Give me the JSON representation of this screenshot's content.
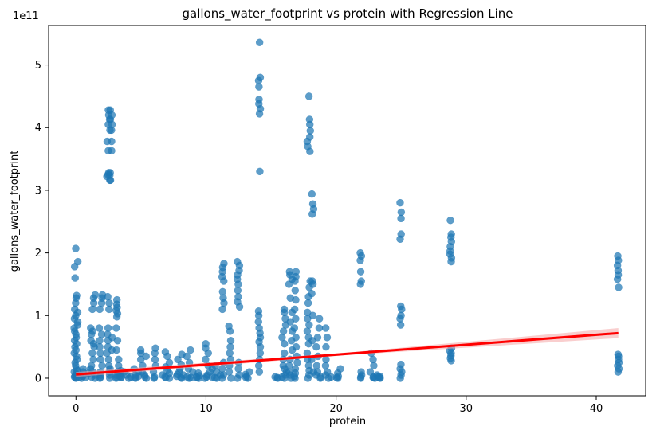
{
  "chart_data": {
    "type": "scatter",
    "title": "gallons_water_footprint vs protein with Regression Line",
    "xlabel": "protein",
    "ylabel": "gallons_water_footprint",
    "y_offset_text": "1e11",
    "xlim": [
      -2.1,
      43.8
    ],
    "ylim": [
      -28000000000.0,
      563000000000.0
    ],
    "xticks": [
      0,
      10,
      20,
      30,
      40
    ],
    "yticks": [
      0,
      100000000000.0,
      200000000000.0,
      300000000000.0,
      400000000000.0,
      500000000000.0
    ],
    "xtick_labels": [
      "0",
      "10",
      "20",
      "30",
      "40"
    ],
    "ytick_labels": [
      "0",
      "1",
      "2",
      "3",
      "4",
      "5"
    ],
    "colors": {
      "points": "#1f77b4",
      "regression": "#ff0000",
      "ci_band": "#f4a6a6"
    },
    "regression": {
      "x": [
        0,
        41.7
      ],
      "y": [
        6000000000.0,
        72000000000.0
      ],
      "ci_halfwidth_at_x": [
        [
          0,
          4000000000.0
        ],
        [
          21,
          2000000000.0
        ],
        [
          41.7,
          8000000000.0
        ]
      ]
    },
    "clusters": [
      {
        "x": 0.0,
        "jitter": 0.15,
        "ys": [
          0,
          1000000000.0,
          2000000000.0,
          3000000000.0,
          5000000000.0,
          7000000000.0,
          10000000000.0,
          12000000000.0,
          15000000000.0,
          20000000000.0,
          25000000000.0,
          30000000000.0,
          35000000000.0,
          40000000000.0,
          45000000000.0,
          50000000000.0,
          55000000000.0,
          60000000000.0,
          65000000000.0,
          70000000000.0,
          75000000000.0,
          80000000000.0,
          85000000000.0,
          90000000000.0,
          95000000000.0,
          100000000000.0,
          105000000000.0,
          110000000000.0,
          120000000000.0,
          128000000000.0,
          132000000000.0,
          160000000000.0,
          178000000000.0,
          186000000000.0,
          207000000000.0
        ]
      },
      {
        "x": 0.7,
        "jitter": 0.5,
        "ys": [
          0,
          1000000000.0,
          3000000000.0,
          5000000000.0,
          8000000000.0,
          10000000000.0,
          15000000000.0,
          2000000000.0
        ]
      },
      {
        "x": 1.3,
        "jitter": 0.2,
        "ys": [
          0,
          2000000000.0,
          5000000000.0,
          10000000000.0,
          20000000000.0,
          30000000000.0,
          40000000000.0,
          50000000000.0,
          55000000000.0,
          60000000000.0,
          70000000000.0,
          75000000000.0,
          80000000000.0,
          15000000000.0,
          110000000000.0,
          120000000000.0,
          128000000000.0,
          133000000000.0
        ]
      },
      {
        "x": 1.9,
        "jitter": 0.15,
        "ys": [
          0,
          2000000000.0,
          5000000000.0,
          10000000000.0,
          20000000000.0,
          30000000000.0,
          40000000000.0,
          50000000000.0,
          60000000000.0,
          70000000000.0,
          80000000000.0,
          110000000000.0,
          120000000000.0,
          128000000000.0,
          133000000000.0
        ]
      },
      {
        "x": 2.5,
        "jitter": 0.12,
        "ys": [
          0,
          5000000000.0,
          10000000000.0,
          20000000000.0,
          30000000000.0,
          40000000000.0,
          50000000000.0,
          60000000000.0,
          70000000000.0,
          80000000000.0,
          110000000000.0,
          120000000000.0,
          130000000000.0,
          316000000000.0,
          322000000000.0,
          325000000000.0,
          328000000000.0,
          363000000000.0,
          378000000000.0,
          396000000000.0,
          405000000000.0,
          413000000000.0,
          420000000000.0,
          428000000000.0
        ]
      },
      {
        "x": 2.7,
        "jitter": 0.1,
        "ys": [
          15000000000.0,
          45000000000.0,
          65000000000.0,
          316000000000.0,
          324000000000.0,
          328000000000.0,
          363000000000.0,
          378000000000.0,
          396000000000.0,
          405000000000.0,
          413000000000.0,
          420000000000.0,
          428000000000.0
        ]
      },
      {
        "x": 3.2,
        "jitter": 0.12,
        "ys": [
          0,
          2000000000.0,
          5000000000.0,
          10000000000.0,
          20000000000.0,
          30000000000.0,
          45000000000.0,
          60000000000.0,
          80000000000.0,
          98000000000.0,
          103000000000.0,
          108000000000.0,
          113000000000.0,
          118000000000.0,
          125000000000.0
        ]
      },
      {
        "x": 3.8,
        "jitter": 0.45,
        "ys": [
          0,
          1000000000.0,
          2000000000.0,
          3000000000.0,
          5000000000.0,
          8000000000.0,
          10000000000.0,
          12000000000.0
        ]
      },
      {
        "x": 4.6,
        "jitter": 0.4,
        "ys": [
          0,
          1000000000.0,
          2000000000.0,
          3000000000.0,
          5000000000.0,
          10000000000.0,
          15000000000.0
        ]
      },
      {
        "x": 5.2,
        "jitter": 0.25,
        "ys": [
          0,
          2000000000.0,
          5000000000.0,
          10000000000.0,
          20000000000.0,
          30000000000.0,
          35000000000.0,
          40000000000.0,
          45000000000.0
        ]
      },
      {
        "x": 6.1,
        "jitter": 0.15,
        "ys": [
          0,
          2000000000.0,
          10000000000.0,
          20000000000.0,
          30000000000.0,
          40000000000.0,
          48000000000.0
        ]
      },
      {
        "x": 6.9,
        "jitter": 0.35,
        "ys": [
          0,
          1000000000.0,
          2000000000.0,
          5000000000.0,
          8000000000.0,
          12000000000.0,
          18000000000.0,
          25000000000.0,
          35000000000.0,
          42000000000.0
        ]
      },
      {
        "x": 7.8,
        "jitter": 0.35,
        "ys": [
          0,
          1000000000.0,
          3000000000.0,
          6000000000.0,
          10000000000.0,
          15000000000.0,
          22000000000.0,
          30000000000.0,
          38000000000.0
        ]
      },
      {
        "x": 8.6,
        "jitter": 0.4,
        "ys": [
          0,
          1000000000.0,
          2000000000.0,
          5000000000.0,
          10000000000.0,
          15000000000.0,
          25000000000.0,
          35000000000.0,
          45000000000.0
        ]
      },
      {
        "x": 9.3,
        "jitter": 0.25,
        "ys": [
          0,
          1000000000.0,
          2000000000.0,
          4000000000.0,
          8000000000.0
        ]
      },
      {
        "x": 10.1,
        "jitter": 0.2,
        "ys": [
          0,
          2000000000.0,
          5000000000.0,
          10000000000.0,
          20000000000.0,
          30000000000.0,
          40000000000.0,
          48000000000.0,
          55000000000.0
        ]
      },
      {
        "x": 10.8,
        "jitter": 0.35,
        "ys": [
          0,
          1000000000.0,
          2000000000.0,
          5000000000.0,
          10000000000.0,
          15000000000.0,
          20000000000.0
        ]
      },
      {
        "x": 11.3,
        "jitter": 0.1,
        "ys": [
          0,
          5000000000.0,
          15000000000.0,
          25000000000.0,
          110000000000.0,
          120000000000.0,
          128000000000.0,
          138000000000.0,
          155000000000.0,
          162000000000.0,
          170000000000.0,
          177000000000.0,
          183000000000.0
        ]
      },
      {
        "x": 11.9,
        "jitter": 0.15,
        "ys": [
          0,
          10000000000.0,
          20000000000.0,
          30000000000.0,
          40000000000.0,
          50000000000.0,
          60000000000.0,
          75000000000.0,
          83000000000.0
        ]
      },
      {
        "x": 12.5,
        "jitter": 0.1,
        "ys": [
          0,
          5000000000.0,
          15000000000.0,
          25000000000.0,
          114000000000.0,
          122000000000.0,
          130000000000.0,
          140000000000.0,
          150000000000.0,
          158000000000.0,
          165000000000.0,
          172000000000.0,
          180000000000.0,
          186000000000.0
        ]
      },
      {
        "x": 13.2,
        "jitter": 0.3,
        "ys": [
          0,
          1000000000.0,
          3000000000.0,
          6000000000.0,
          10000000000.0
        ]
      },
      {
        "x": 14.1,
        "jitter": 0.08,
        "ys": [
          10000000000.0,
          20000000000.0,
          30000000000.0,
          40000000000.0,
          50000000000.0,
          58000000000.0,
          65000000000.0,
          72000000000.0,
          80000000000.0,
          90000000000.0,
          100000000000.0,
          107000000000.0,
          330000000000.0,
          422000000000.0,
          430000000000.0,
          438000000000.0,
          445000000000.0,
          465000000000.0,
          475000000000.0,
          480000000000.0,
          536000000000.0
        ]
      },
      {
        "x": 15.4,
        "jitter": 0.2,
        "ys": [
          0,
          1000000000.0,
          2000000000.0
        ]
      },
      {
        "x": 16.0,
        "jitter": 0.2,
        "ys": [
          0,
          2000000000.0,
          5000000000.0,
          10000000000.0,
          15000000000.0,
          20000000000.0,
          30000000000.0,
          40000000000.0,
          55000000000.0,
          65000000000.0,
          75000000000.0,
          85000000000.0,
          95000000000.0,
          105000000000.0,
          110000000000.0
        ]
      },
      {
        "x": 16.5,
        "jitter": 0.15,
        "ys": [
          0,
          5000000000.0,
          10000000000.0,
          20000000000.0,
          30000000000.0,
          45000000000.0,
          60000000000.0,
          75000000000.0,
          90000000000.0,
          105000000000.0,
          128000000000.0,
          150000000000.0,
          158000000000.0,
          165000000000.0,
          170000000000.0
        ]
      },
      {
        "x": 16.9,
        "jitter": 0.12,
        "ys": [
          0,
          3000000000.0,
          8000000000.0,
          15000000000.0,
          25000000000.0,
          35000000000.0,
          50000000000.0,
          65000000000.0,
          80000000000.0,
          95000000000.0,
          110000000000.0,
          125000000000.0,
          140000000000.0,
          155000000000.0,
          162000000000.0,
          170000000000.0
        ]
      },
      {
        "x": 17.9,
        "jitter": 0.12,
        "ys": [
          0,
          5000000000.0,
          12000000000.0,
          20000000000.0,
          30000000000.0,
          40000000000.0,
          55000000000.0,
          65000000000.0,
          75000000000.0,
          85000000000.0,
          95000000000.0,
          105000000000.0,
          120000000000.0,
          130000000000.0,
          145000000000.0,
          155000000000.0,
          362000000000.0,
          370000000000.0,
          378000000000.0,
          385000000000.0,
          395000000000.0,
          405000000000.0,
          413000000000.0,
          450000000000.0
        ]
      },
      {
        "x": 18.2,
        "jitter": 0.08,
        "ys": [
          10000000000.0,
          30000000000.0,
          60000000000.0,
          100000000000.0,
          135000000000.0,
          150000000000.0,
          155000000000.0,
          262000000000.0,
          270000000000.0,
          278000000000.0,
          294000000000.0
        ]
      },
      {
        "x": 18.7,
        "jitter": 0.25,
        "ys": [
          0,
          2000000000.0,
          5000000000.0,
          10000000000.0,
          20000000000.0,
          35000000000.0,
          50000000000.0,
          65000000000.0,
          80000000000.0,
          95000000000.0
        ]
      },
      {
        "x": 19.4,
        "jitter": 0.25,
        "ys": [
          0,
          2000000000.0,
          5000000000.0,
          10000000000.0,
          20000000000.0,
          30000000000.0,
          50000000000.0,
          65000000000.0,
          80000000000.0
        ]
      },
      {
        "x": 20.2,
        "jitter": 0.2,
        "ys": [
          0,
          1000000000.0,
          3000000000.0,
          8000000000.0,
          15000000000.0
        ]
      },
      {
        "x": 21.9,
        "jitter": 0.08,
        "ys": [
          0,
          2000000000.0,
          5000000000.0,
          10000000000.0,
          150000000000.0,
          155000000000.0,
          170000000000.0,
          188000000000.0,
          195000000000.0,
          200000000000.0
        ]
      },
      {
        "x": 22.9,
        "jitter": 0.35,
        "ys": [
          0,
          1000000000.0,
          2000000000.0,
          5000000000.0,
          10000000000.0,
          20000000000.0,
          30000000000.0,
          40000000000.0
        ]
      },
      {
        "x": 23.3,
        "jitter": 0.15,
        "ys": [
          0,
          1000000000.0,
          2000000000.0,
          3000000000.0
        ]
      },
      {
        "x": 25.0,
        "jitter": 0.08,
        "ys": [
          0,
          5000000000.0,
          10000000000.0,
          15000000000.0,
          22000000000.0,
          85000000000.0,
          95000000000.0,
          100000000000.0,
          110000000000.0,
          115000000000.0,
          222000000000.0,
          230000000000.0,
          255000000000.0,
          265000000000.0,
          280000000000.0
        ]
      },
      {
        "x": 28.8,
        "jitter": 0.08,
        "ys": [
          28000000000.0,
          32000000000.0,
          36000000000.0,
          40000000000.0,
          44000000000.0,
          48000000000.0,
          186000000000.0,
          192000000000.0,
          198000000000.0,
          203000000000.0,
          210000000000.0,
          218000000000.0,
          225000000000.0,
          230000000000.0,
          252000000000.0
        ]
      },
      {
        "x": 41.7,
        "jitter": 0.08,
        "ys": [
          10000000000.0,
          15000000000.0,
          20000000000.0,
          25000000000.0,
          30000000000.0,
          35000000000.0,
          38000000000.0,
          145000000000.0,
          158000000000.0,
          165000000000.0,
          172000000000.0,
          180000000000.0,
          188000000000.0,
          195000000000.0
        ]
      }
    ]
  }
}
